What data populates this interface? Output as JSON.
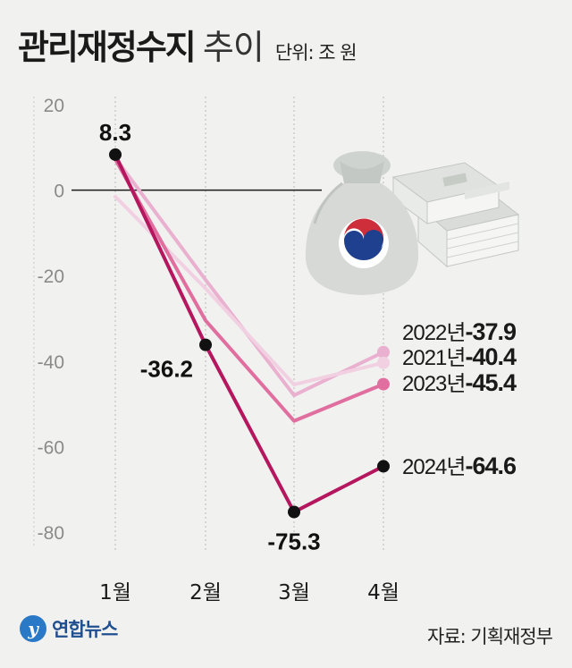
{
  "header": {
    "title_main": "관리재정수지",
    "title_sub": "추이",
    "unit": "단위: 조 원"
  },
  "footer": {
    "logo_text": "연합뉴스",
    "source": "자료: 기획재정부"
  },
  "chart_data": {
    "type": "line",
    "categories": [
      "1월",
      "2월",
      "3월",
      "4월"
    ],
    "ylim": [
      -80,
      20
    ],
    "yticks": [
      20,
      0,
      -20,
      -40,
      -60,
      -80
    ],
    "grid": "vertical dotted",
    "series": [
      {
        "name": "2022년",
        "values": [
          7.5,
          -21.0,
          -48.0,
          -37.9
        ],
        "color": "#e9b1cf",
        "end_label": "-37.9",
        "marker": true
      },
      {
        "name": "2021년",
        "values": [
          -1.5,
          -23.0,
          -45.5,
          -40.4
        ],
        "color": "#f1d0e1",
        "end_label": "-40.4",
        "marker": true
      },
      {
        "name": "2023년",
        "values": [
          7.2,
          -30.5,
          -54.0,
          -45.4
        ],
        "color": "#e06f9f",
        "end_label": "-45.4",
        "marker": true
      },
      {
        "name": "2024년",
        "values": [
          8.3,
          -36.2,
          -75.3,
          -64.6
        ],
        "color": "#b5175f",
        "end_label": "-64.6",
        "marker": true,
        "point_labels": [
          "8.3",
          "-36.2",
          "-75.3"
        ]
      }
    ]
  }
}
